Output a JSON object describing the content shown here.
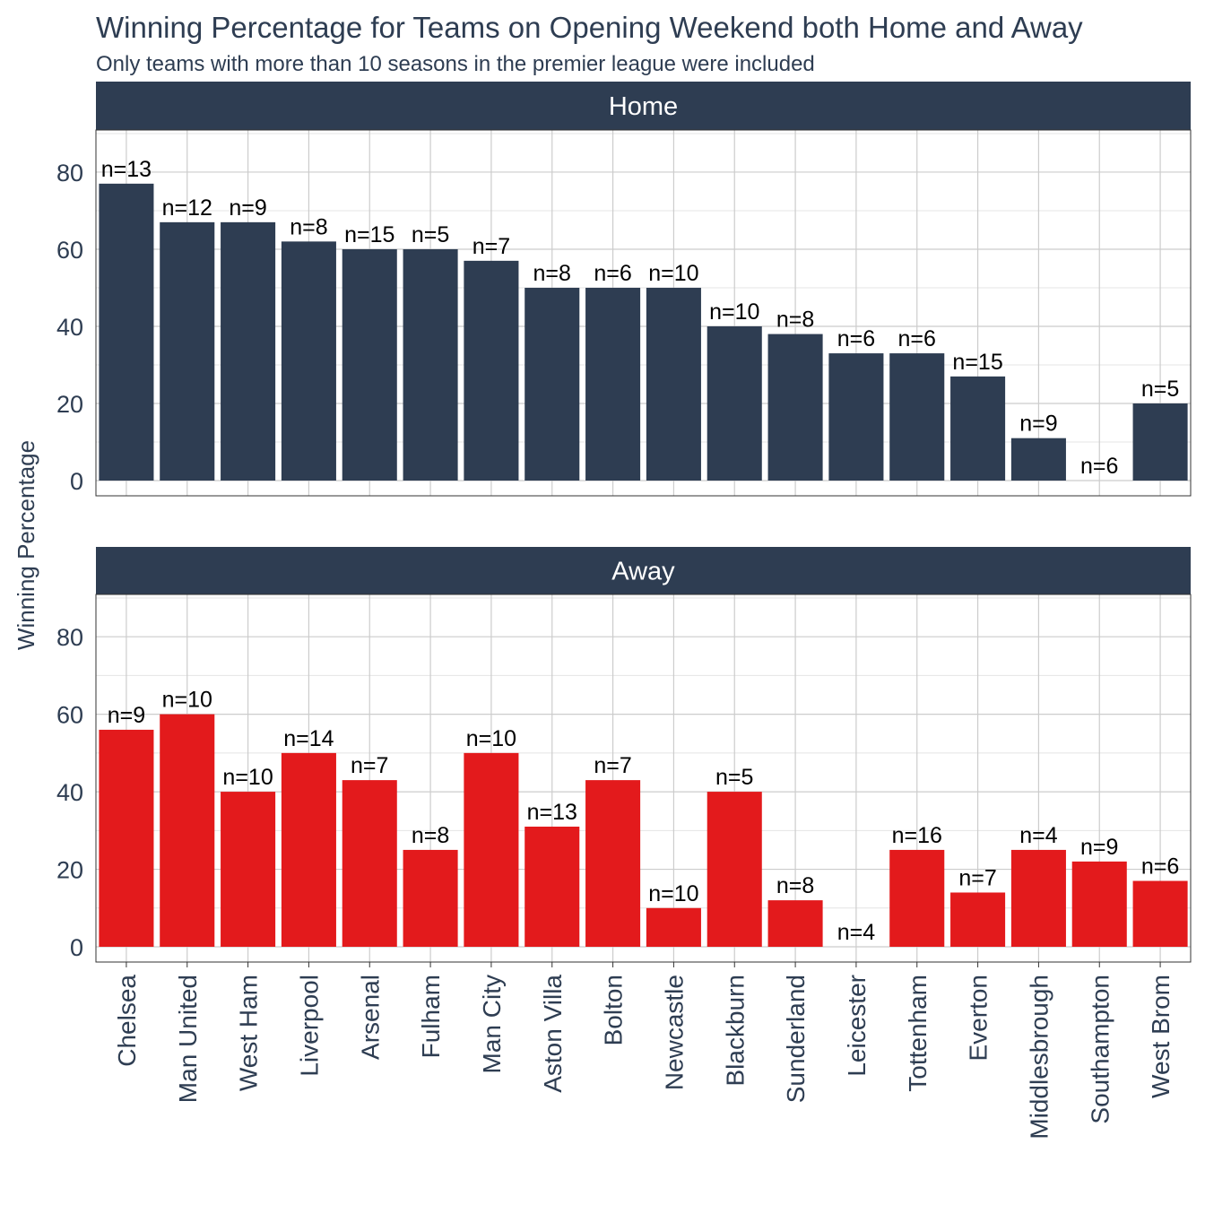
{
  "chart_data": {
    "type": "bar",
    "title": "Winning Percentage for Teams on Opening Weekend both Home and Away",
    "subtitle": "Only teams with more than 10 seasons in the premier league were included",
    "ylabel": "Winning Percentage",
    "xlabel": "",
    "ylim": [
      0,
      90
    ],
    "yticks": [
      0,
      20,
      40,
      60,
      80
    ],
    "grid": true,
    "categories": [
      "Chelsea",
      "Man United",
      "West Ham",
      "Liverpool",
      "Arsenal",
      "Fulham",
      "Man City",
      "Aston Villa",
      "Bolton",
      "Newcastle",
      "Blackburn",
      "Sunderland",
      "Leicester",
      "Tottenham",
      "Everton",
      "Middlesbrough",
      "Southampton",
      "West Brom"
    ],
    "panels": [
      {
        "name": "Home",
        "color": "#2e3d52",
        "values": [
          77,
          67,
          67,
          62,
          60,
          60,
          57,
          50,
          50,
          50,
          40,
          38,
          33,
          33,
          27,
          11,
          0,
          20
        ],
        "labels": [
          "n=13",
          "n=12",
          "n=9",
          "n=8",
          "n=15",
          "n=5",
          "n=7",
          "n=8",
          "n=6",
          "n=10",
          "n=10",
          "n=8",
          "n=6",
          "n=6",
          "n=15",
          "n=9",
          "n=6",
          "n=5"
        ]
      },
      {
        "name": "Away",
        "color": "#e31a1c",
        "values": [
          56,
          60,
          40,
          50,
          43,
          25,
          50,
          31,
          43,
          10,
          40,
          12,
          0,
          25,
          14,
          25,
          22,
          17
        ],
        "labels": [
          "n=9",
          "n=10",
          "n=10",
          "n=14",
          "n=7",
          "n=8",
          "n=10",
          "n=13",
          "n=7",
          "n=10",
          "n=5",
          "n=8",
          "n=4",
          "n=16",
          "n=7",
          "n=4",
          "n=9",
          "n=6"
        ]
      }
    ]
  }
}
